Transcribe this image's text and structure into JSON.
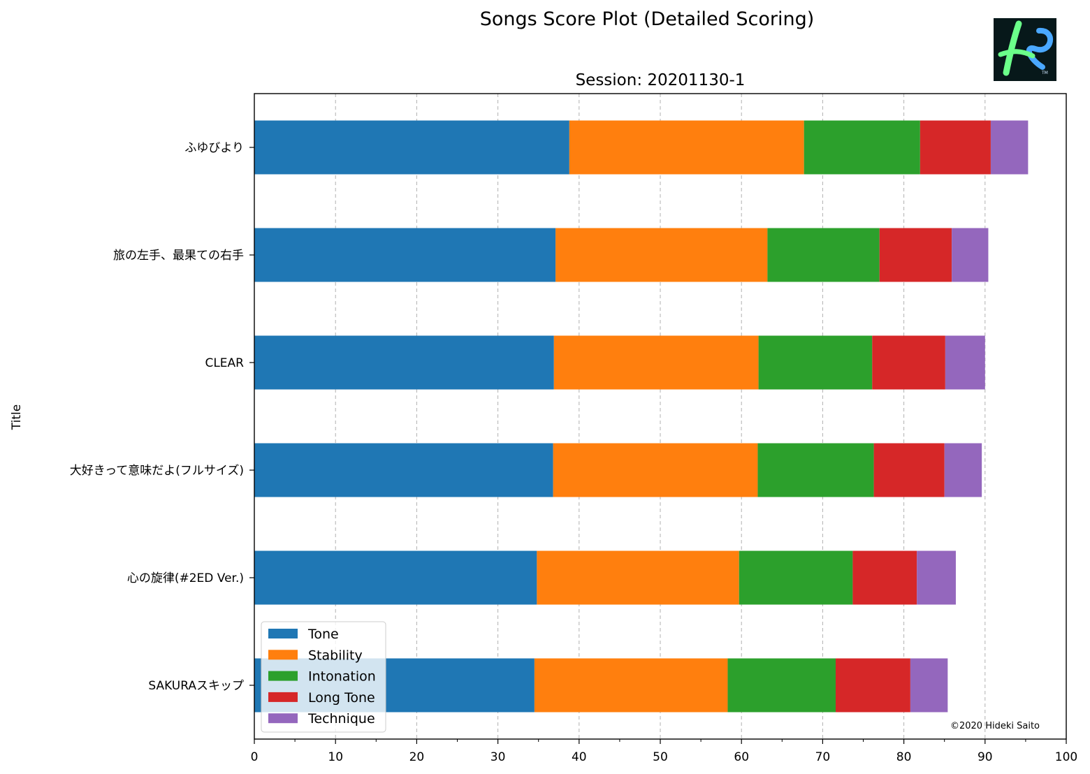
{
  "chart_data": {
    "type": "bar",
    "orientation": "horizontal",
    "stacked": true,
    "suptitle": "Songs Score Plot (Detailed Scoring)",
    "title": "Session: 20201130-1",
    "ylabel": "Title",
    "xlabel": "",
    "xlim": [
      0,
      100
    ],
    "xticks": [
      0,
      10,
      20,
      30,
      40,
      50,
      60,
      70,
      80,
      90,
      100
    ],
    "grid": "x, dashed",
    "legend_placement": "lower-left",
    "categories": [
      "ふゆびより",
      "旅の左手、最果ての右手",
      "CLEAR",
      "大好きって意味だよ(フルサイズ)",
      "心の旋律(#2ED Ver.)",
      "SAKURAスキップ"
    ],
    "series": [
      {
        "name": "Tone",
        "color": "#1f77b4",
        "values": [
          38.8,
          37.1,
          36.9,
          36.8,
          34.8,
          34.5
        ]
      },
      {
        "name": "Stability",
        "color": "#ff7f0e",
        "values": [
          28.9,
          26.1,
          25.2,
          25.2,
          24.9,
          23.8
        ]
      },
      {
        "name": "Intonation",
        "color": "#2ca02c",
        "values": [
          14.3,
          13.8,
          14.0,
          14.3,
          14.0,
          13.3
        ]
      },
      {
        "name": "Long Tone",
        "color": "#d62728",
        "values": [
          8.7,
          8.9,
          9.0,
          8.7,
          7.9,
          9.2
        ]
      },
      {
        "name": "Technique",
        "color": "#9467bd",
        "values": [
          4.6,
          4.5,
          4.9,
          4.6,
          4.8,
          4.6
        ]
      }
    ]
  },
  "footer": {
    "copyright": "©2020 Hideki Saito"
  },
  "logo": {
    "icon": "stylized-s-logo-icon"
  }
}
